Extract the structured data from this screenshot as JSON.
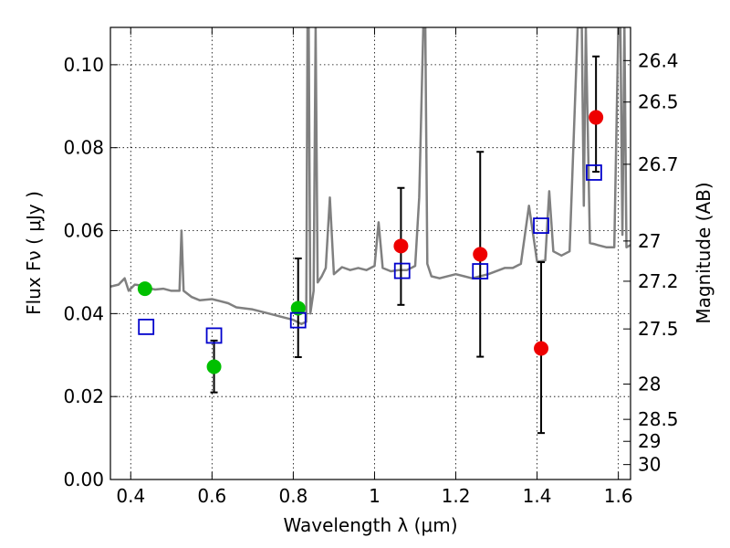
{
  "chart_data": {
    "type": "scatter",
    "xlabel": "Wavelength  λ (μm)",
    "ylabel": "Flux  Fν  ( μJy )",
    "ylabel_right": "Magnitude (AB)",
    "xlim": [
      0.35,
      1.63
    ],
    "ylim": [
      0.0,
      0.109
    ],
    "x_ticks": [
      0.4,
      0.6,
      0.8,
      1.0,
      1.2,
      1.4,
      1.6
    ],
    "x_tick_labels": [
      "0.4",
      "0.6",
      "0.8",
      "1",
      "1.2",
      "1.4",
      "1.6"
    ],
    "y_ticks": [
      0.0,
      0.02,
      0.04,
      0.06,
      0.08,
      0.1
    ],
    "y_tick_labels": [
      "0.00",
      "0.02",
      "0.04",
      "0.06",
      "0.08",
      "0.10"
    ],
    "right_axis_ticks": [
      {
        "label": "26.4",
        "flux": 0.101
      },
      {
        "label": "26.5",
        "flux": 0.091
      },
      {
        "label": "26.7",
        "flux": 0.076
      },
      {
        "label": "27",
        "flux": 0.0575
      },
      {
        "label": "27.2",
        "flux": 0.0478
      },
      {
        "label": "27.5",
        "flux": 0.0363
      },
      {
        "label": "28",
        "flux": 0.023
      },
      {
        "label": "28.5",
        "flux": 0.0145
      },
      {
        "label": "29",
        "flux": 0.0092
      },
      {
        "label": "30",
        "flux": 0.0036
      }
    ],
    "grid": true,
    "colors": {
      "template": "#808080",
      "optical": "#00c000",
      "nir": "#ee0000",
      "model": "#0000cc",
      "errorbar": "#000000"
    },
    "series": [
      {
        "kind": "line",
        "color": "#808080",
        "x": [
          0.35,
          0.37,
          0.385,
          0.395,
          0.41,
          0.425,
          0.44,
          0.46,
          0.48,
          0.5,
          0.52,
          0.525,
          0.53,
          0.55,
          0.57,
          0.6,
          0.62,
          0.64,
          0.66,
          0.7,
          0.74,
          0.78,
          0.8,
          0.82,
          0.832,
          0.835,
          0.838,
          0.842,
          0.85,
          0.855,
          0.86,
          0.87,
          0.88,
          0.89,
          0.9,
          0.92,
          0.94,
          0.96,
          0.98,
          1.0,
          1.01,
          1.02,
          1.04,
          1.06,
          1.08,
          1.1,
          1.11,
          1.12,
          1.125,
          1.13,
          1.14,
          1.16,
          1.2,
          1.24,
          1.28,
          1.32,
          1.34,
          1.36,
          1.38,
          1.4,
          1.42,
          1.43,
          1.44,
          1.46,
          1.48,
          1.5,
          1.51,
          1.515,
          1.52,
          1.53,
          1.54,
          1.55,
          1.57,
          1.59,
          1.6,
          1.605,
          1.61,
          1.615,
          1.62,
          1.63
        ],
        "y": [
          0.0465,
          0.047,
          0.0485,
          0.0455,
          0.047,
          0.0468,
          0.0462,
          0.0458,
          0.046,
          0.0455,
          0.0455,
          0.06,
          0.0455,
          0.044,
          0.0432,
          0.0435,
          0.043,
          0.0425,
          0.0415,
          0.041,
          0.04,
          0.039,
          0.0385,
          0.0375,
          0.038,
          0.109,
          0.109,
          0.04,
          0.0455,
          0.109,
          0.0475,
          0.049,
          0.051,
          0.068,
          0.0495,
          0.0512,
          0.0505,
          0.051,
          0.0505,
          0.0515,
          0.062,
          0.051,
          0.0502,
          0.0505,
          0.0505,
          0.0515,
          0.068,
          0.109,
          0.109,
          0.052,
          0.049,
          0.0485,
          0.0495,
          0.0485,
          0.0495,
          0.051,
          0.051,
          0.052,
          0.066,
          0.0525,
          0.0528,
          0.0695,
          0.055,
          0.054,
          0.055,
          0.109,
          0.109,
          0.066,
          0.109,
          0.057,
          0.0568,
          0.0565,
          0.056,
          0.056,
          0.109,
          0.109,
          0.059,
          0.109,
          0.056,
          0.0565
        ]
      },
      {
        "kind": "points",
        "marker": "filled-circle",
        "color": "#00c000",
        "x": [
          0.435,
          0.605,
          0.812
        ],
        "y": [
          0.046,
          0.0272,
          0.0413
        ],
        "yerr_low": [
          null,
          0.021,
          0.0295
        ],
        "yerr_high": [
          null,
          0.0335,
          0.0533
        ]
      },
      {
        "kind": "points",
        "marker": "filled-circle",
        "color": "#ee0000",
        "x": [
          1.065,
          1.26,
          1.41,
          1.545
        ],
        "y": [
          0.0563,
          0.0543,
          0.0316,
          0.0873
        ],
        "yerr_low": [
          0.0421,
          0.0296,
          0.0112,
          0.0742
        ],
        "yerr_high": [
          0.0703,
          0.079,
          0.0524,
          0.102
        ]
      },
      {
        "kind": "points",
        "marker": "open-square",
        "color": "#0000cc",
        "x": [
          0.438,
          0.605,
          0.812,
          1.068,
          1.26,
          1.41,
          1.54
        ],
        "y": [
          0.0368,
          0.0347,
          0.0384,
          0.0503,
          0.0502,
          0.0612,
          0.074
        ]
      }
    ]
  }
}
